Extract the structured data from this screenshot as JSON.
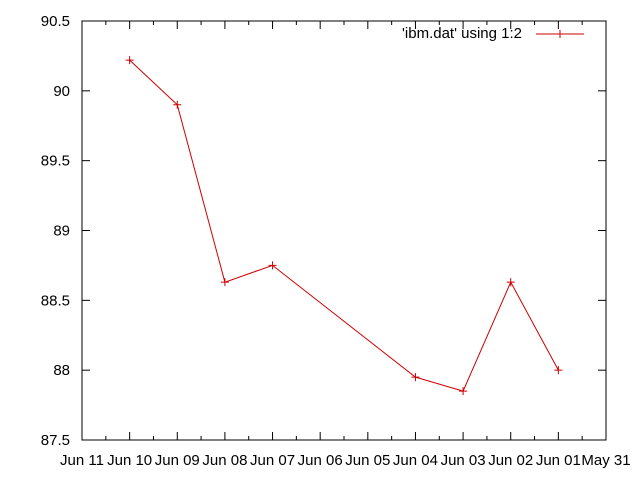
{
  "chart_data": {
    "type": "line",
    "title": "",
    "xlabel": "",
    "ylabel": "",
    "x_axis_reversed": true,
    "x_tick_labels": [
      "Jun 11",
      "Jun 10",
      "Jun 09",
      "Jun 08",
      "Jun 07",
      "Jun 06",
      "Jun 05",
      "Jun 04",
      "Jun 03",
      "Jun 02",
      "Jun 01",
      "May 31"
    ],
    "y_tick_labels": [
      "87.5",
      "88",
      "88.5",
      "89",
      "89.5",
      "90",
      "90.5"
    ],
    "ylim": [
      87.5,
      90.5
    ],
    "grid": false,
    "legend_position": "top-right",
    "series": [
      {
        "name": "'ibm.dat' using 1:2",
        "color": "#cc0000",
        "marker": "plus",
        "x": [
          "Jun 10",
          "Jun 09",
          "Jun 08",
          "Jun 07",
          "Jun 04",
          "Jun 03",
          "Jun 02",
          "Jun 01"
        ],
        "y": [
          90.22,
          89.9,
          88.63,
          88.75,
          87.95,
          87.85,
          88.63,
          88.0
        ]
      }
    ]
  }
}
